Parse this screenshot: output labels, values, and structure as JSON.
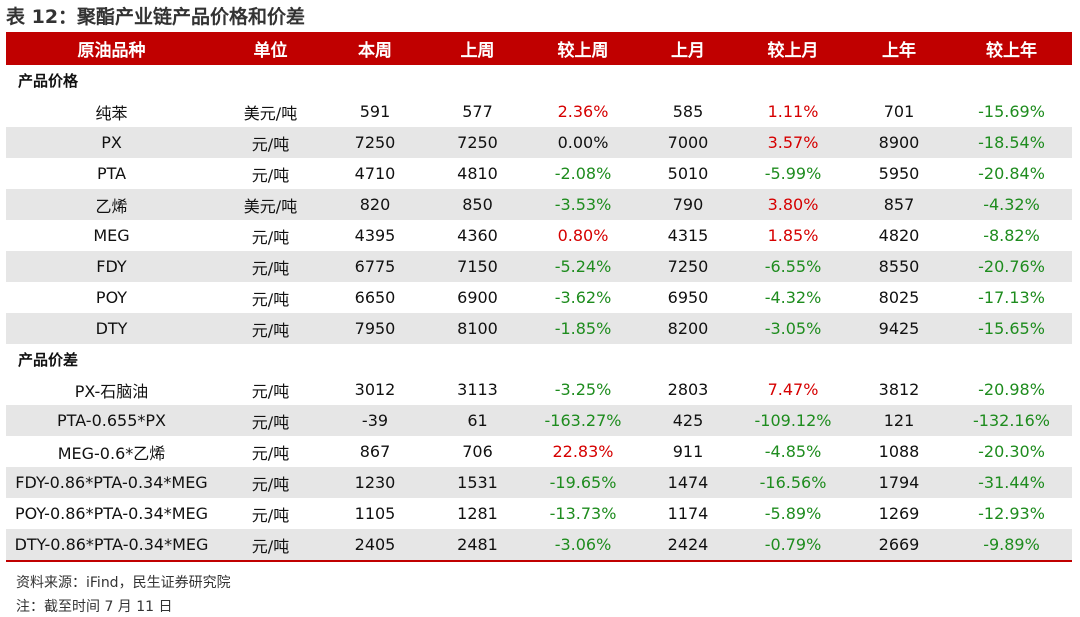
{
  "title": "表 12：聚酯产业链产品价格和价差",
  "headers": [
    "原油品种",
    "单位",
    "本周",
    "上周",
    "较上周",
    "上月",
    "较上月",
    "上年",
    "较上年"
  ],
  "sections": [
    {
      "name": "产品价格",
      "rows": [
        {
          "name": "纯苯",
          "unit": "美元/吨",
          "this_week": "591",
          "last_week": "577",
          "wow": "2.36%",
          "last_month": "585",
          "mom": "1.11%",
          "last_year": "701",
          "yoy": "-15.69%"
        },
        {
          "name": "PX",
          "unit": "元/吨",
          "this_week": "7250",
          "last_week": "7250",
          "wow": "0.00%",
          "last_month": "7000",
          "mom": "3.57%",
          "last_year": "8900",
          "yoy": "-18.54%"
        },
        {
          "name": "PTA",
          "unit": "元/吨",
          "this_week": "4710",
          "last_week": "4810",
          "wow": "-2.08%",
          "last_month": "5010",
          "mom": "-5.99%",
          "last_year": "5950",
          "yoy": "-20.84%"
        },
        {
          "name": "乙烯",
          "unit": "美元/吨",
          "this_week": "820",
          "last_week": "850",
          "wow": "-3.53%",
          "last_month": "790",
          "mom": "3.80%",
          "last_year": "857",
          "yoy": "-4.32%"
        },
        {
          "name": "MEG",
          "unit": "元/吨",
          "this_week": "4395",
          "last_week": "4360",
          "wow": "0.80%",
          "last_month": "4315",
          "mom": "1.85%",
          "last_year": "4820",
          "yoy": "-8.82%"
        },
        {
          "name": "FDY",
          "unit": "元/吨",
          "this_week": "6775",
          "last_week": "7150",
          "wow": "-5.24%",
          "last_month": "7250",
          "mom": "-6.55%",
          "last_year": "8550",
          "yoy": "-20.76%"
        },
        {
          "name": "POY",
          "unit": "元/吨",
          "this_week": "6650",
          "last_week": "6900",
          "wow": "-3.62%",
          "last_month": "6950",
          "mom": "-4.32%",
          "last_year": "8025",
          "yoy": "-17.13%"
        },
        {
          "name": "DTY",
          "unit": "元/吨",
          "this_week": "7950",
          "last_week": "8100",
          "wow": "-1.85%",
          "last_month": "8200",
          "mom": "-3.05%",
          "last_year": "9425",
          "yoy": "-15.65%"
        }
      ]
    },
    {
      "name": "产品价差",
      "rows": [
        {
          "name": "PX-石脑油",
          "unit": "元/吨",
          "this_week": "3012",
          "last_week": "3113",
          "wow": "-3.25%",
          "last_month": "2803",
          "mom": "7.47%",
          "last_year": "3812",
          "yoy": "-20.98%"
        },
        {
          "name": "PTA-0.655*PX",
          "unit": "元/吨",
          "this_week": "-39",
          "last_week": "61",
          "wow": "-163.27%",
          "last_month": "425",
          "mom": "-109.12%",
          "last_year": "121",
          "yoy": "-132.16%"
        },
        {
          "name": "MEG-0.6*乙烯",
          "unit": "元/吨",
          "this_week": "867",
          "last_week": "706",
          "wow": "22.83%",
          "last_month": "911",
          "mom": "-4.85%",
          "last_year": "1088",
          "yoy": "-20.30%"
        },
        {
          "name": "FDY-0.86*PTA-0.34*MEG",
          "unit": "元/吨",
          "this_week": "1230",
          "last_week": "1531",
          "wow": "-19.65%",
          "last_month": "1474",
          "mom": "-16.56%",
          "last_year": "1794",
          "yoy": "-31.44%"
        },
        {
          "name": "POY-0.86*PTA-0.34*MEG",
          "unit": "元/吨",
          "this_week": "1105",
          "last_week": "1281",
          "wow": "-13.73%",
          "last_month": "1174",
          "mom": "-5.89%",
          "last_year": "1269",
          "yoy": "-12.93%"
        },
        {
          "name": "DTY-0.86*PTA-0.34*MEG",
          "unit": "元/吨",
          "this_week": "2405",
          "last_week": "2481",
          "wow": "-3.06%",
          "last_month": "2424",
          "mom": "-0.79%",
          "last_year": "2669",
          "yoy": "-9.89%"
        }
      ]
    }
  ],
  "source": "资料来源：iFind，民生证券研究院",
  "note": "注：截至时间 7 月 11 日",
  "colors": {
    "header_bg": "#c00000",
    "positive": "#d60000",
    "negative": "#1e8c1e",
    "row_shade": "#e6e6e6"
  }
}
